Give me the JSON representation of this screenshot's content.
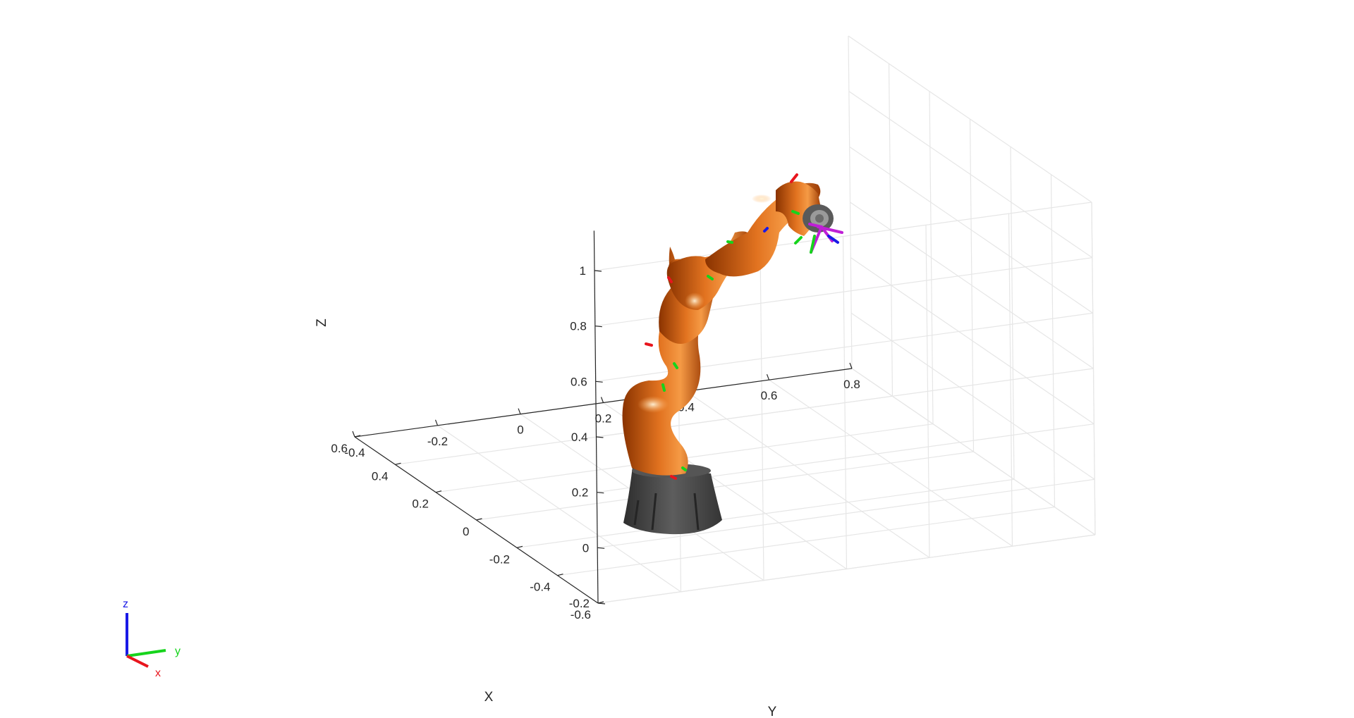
{
  "chart_data": {
    "type": "3d-robot-plot",
    "xlabel": "X",
    "ylabel": "Y",
    "zlabel": "Z",
    "x_ticks": [
      "-0.6",
      "-0.4",
      "-0.2",
      "0",
      "0.2",
      "0.4",
      "0.6"
    ],
    "y_ticks": [
      "-0.4",
      "-0.2",
      "0",
      "0.2",
      "0.4",
      "0.6",
      "0.8"
    ],
    "z_ticks": [
      "-0.2",
      "0",
      "0.2",
      "0.4",
      "0.6",
      "0.8",
      "1"
    ],
    "xlim": [
      -0.6,
      0.6
    ],
    "ylim": [
      -0.4,
      0.8
    ],
    "zlim": [
      -0.2,
      1.0
    ],
    "grid": true,
    "robot_color": "#d2600f",
    "base_color": "#4a4a4a",
    "triad": {
      "x_label": "x",
      "y_label": "y",
      "z_label": "z",
      "x_color": "#e8151d",
      "y_color": "#16d41c",
      "z_color": "#1919e6"
    }
  }
}
